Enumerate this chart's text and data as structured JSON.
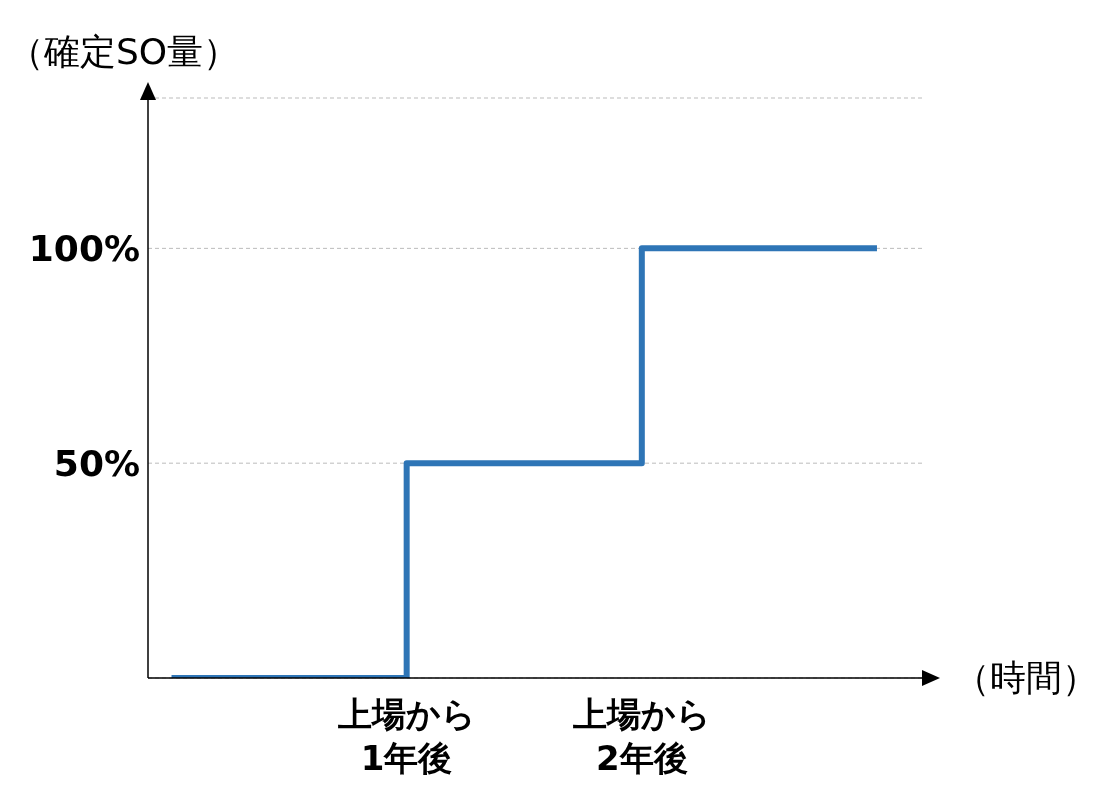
{
  "chart_data": {
    "type": "step",
    "ylabel": "（確定SO量）",
    "xlabel": "（時間）",
    "categories": [
      null,
      "上場から1年後",
      "上場から2年後",
      null
    ],
    "series": [
      {
        "color": "#2e75b6",
        "values": [
          0,
          50,
          100,
          100
        ]
      }
    ],
    "ylim": [
      0,
      135
    ],
    "yticks": [
      {
        "value": 50,
        "label": "50%"
      },
      {
        "value": 100,
        "label": "100%"
      }
    ],
    "grid": "y",
    "line_style": "solid",
    "marker": "none"
  }
}
